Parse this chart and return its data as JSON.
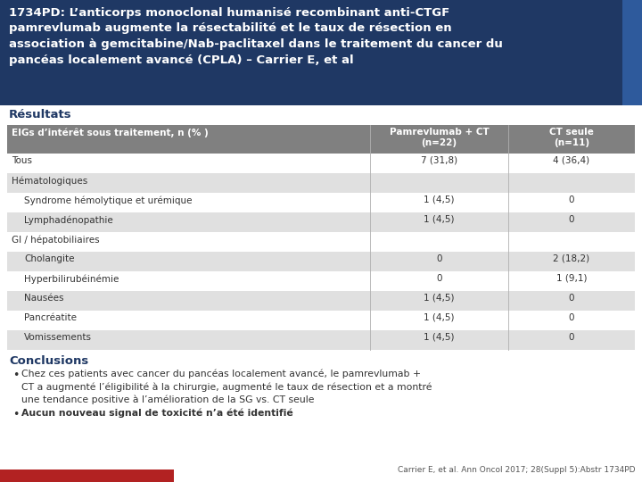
{
  "title_lines": [
    "1734PD: L’anticorps monoclonal humanisé recombinant anti-CTGF",
    "pamrevlumab augmente la résectabilité et le taux de résection en",
    "association à gemcitabine/Nab-paclitaxel dans le traitement du cancer du",
    "pancéas localement avancé (CPLA) – Carrier E, et al"
  ],
  "title_bg": "#1f3864",
  "title_accent_bg": "#2e5a9c",
  "section_results": "Résultats",
  "table_header_col1": "EIGs d’intérêt sous traitement, n (% )",
  "table_header_col2": "Pamrevlumab + CT\n(n=22)",
  "table_header_col3": "CT seule\n(n=11)",
  "table_header_bg": "#808080",
  "rows": [
    {
      "label": "Tous",
      "col2": "7 (31,8)",
      "col3": "4 (36,4)",
      "bg": "#ffffff",
      "indent": false
    },
    {
      "label": "Hématologiques",
      "col2": "",
      "col3": "",
      "bg": "#e0e0e0",
      "indent": false
    },
    {
      "label": "Syndrome hémolytique et urémique",
      "col2": "1 (4,5)",
      "col3": "0",
      "bg": "#ffffff",
      "indent": true
    },
    {
      "label": "Lymphadénopathie",
      "col2": "1 (4,5)",
      "col3": "0",
      "bg": "#e0e0e0",
      "indent": true
    },
    {
      "label": "GI / hépatobiliaires",
      "col2": "",
      "col3": "",
      "bg": "#ffffff",
      "indent": false
    },
    {
      "label": "Cholangite",
      "col2": "0",
      "col3": "2 (18,2)",
      "bg": "#e0e0e0",
      "indent": true
    },
    {
      "label": "Hyperbilirubéinémie",
      "col2": "0",
      "col3": "1 (9,1)",
      "bg": "#ffffff",
      "indent": true
    },
    {
      "label": "Nausées",
      "col2": "1 (4,5)",
      "col3": "0",
      "bg": "#e0e0e0",
      "indent": true
    },
    {
      "label": "Pancréatite",
      "col2": "1 (4,5)",
      "col3": "0",
      "bg": "#ffffff",
      "indent": true
    },
    {
      "label": "Vomissements",
      "col2": "1 (4,5)",
      "col3": "0",
      "bg": "#e0e0e0",
      "indent": true
    }
  ],
  "section_conclusions": "Conclusions",
  "bullet1": "Chez ces patients avec cancer du pancéas localement avancé, le pamrevlumab +\nCT a augmenté l’éligibilité à la chirurgie, augmenté le taux de résection et a montré\nune tendance positive à l’amélioration de la SG vs. CT seule",
  "bullet2": "Aucun nouveau signal de toxicité n’a été identifié",
  "citation": "Carrier E, et al. Ann Oncol 2017; 28(Suppl 5):Abstr 1734PD",
  "footer_bar_color": "#b22222",
  "dark_blue": "#1f3864",
  "text_dark": "#333333",
  "text_medium": "#555555"
}
